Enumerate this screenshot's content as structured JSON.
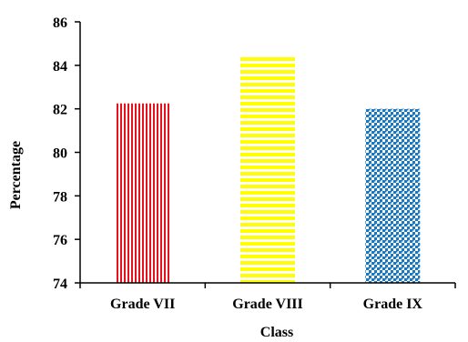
{
  "chart_data": {
    "type": "bar",
    "title": "",
    "xlabel": "Class",
    "ylabel": "Percentage",
    "categories": [
      "Grade VII",
      "Grade VIII",
      "Grade IX"
    ],
    "values": [
      82.25,
      84.45,
      82.0
    ],
    "ylim": [
      74,
      86
    ],
    "yticks": [
      74,
      76,
      78,
      80,
      82,
      84,
      86
    ],
    "grid": false,
    "legend": "none",
    "bar_fills": [
      {
        "pattern": "vertical-stripes",
        "color": "#e8111b"
      },
      {
        "pattern": "horizontal-stripes",
        "color": "#ffff00"
      },
      {
        "pattern": "checker-dots",
        "color": "#1a78c2"
      }
    ]
  }
}
